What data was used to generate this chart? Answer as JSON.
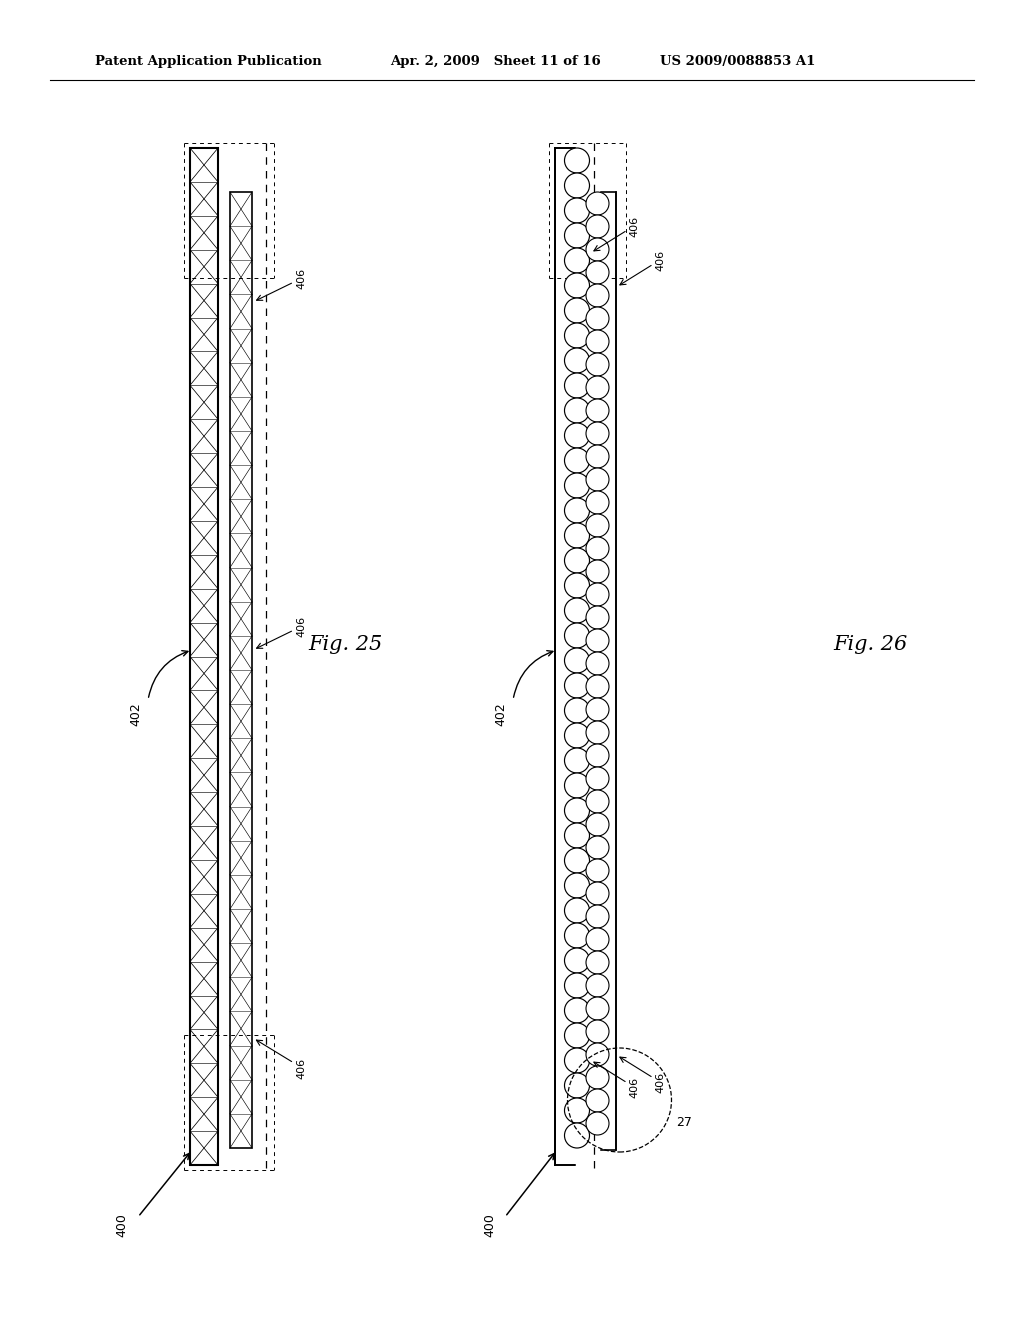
{
  "bg_color": "#ffffff",
  "header_text": "Patent Application Publication",
  "header_date": "Apr. 2, 2009   Sheet 11 of 16",
  "header_patent": "US 2009/0088853 A1",
  "fig25_label": "Fig. 25",
  "fig26_label": "Fig. 26",
  "label_400_l": "400",
  "label_402_l": "402",
  "label_406": "406",
  "label_27": "27",
  "label_400_r": "400",
  "label_402_r": "402"
}
